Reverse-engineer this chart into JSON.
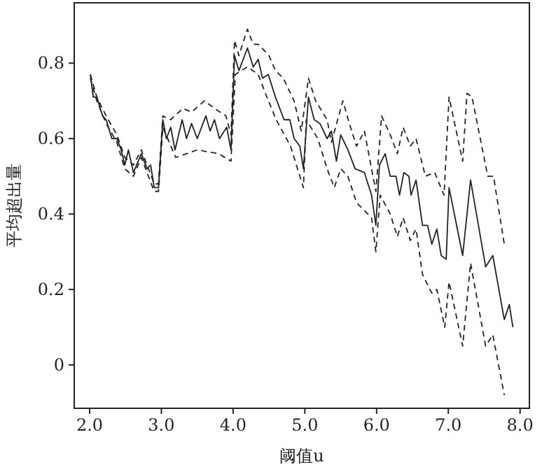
{
  "chart_data": {
    "type": "line",
    "xlabel": "阈值u",
    "ylabel": "平均超出量",
    "xlim": [
      1.785,
      8.13
    ],
    "xticks": [
      {
        "value": 2,
        "label": "2.0"
      },
      {
        "value": 3,
        "label": "3.0"
      },
      {
        "value": 4,
        "label": "4.0"
      },
      {
        "value": 5,
        "label": "5.0"
      },
      {
        "value": 6,
        "label": "6.0"
      },
      {
        "value": 7,
        "label": "7.0"
      },
      {
        "value": 8,
        "label": "8.0"
      }
    ],
    "ylim": [
      -0.115,
      0.96
    ],
    "yticks": [
      0,
      0.2,
      0.4,
      0.6,
      0.8
    ],
    "grid": false,
    "marker": "none",
    "series": [
      {
        "color": "#222222",
        "line_style": "solid",
        "x": [
          2.01,
          2.05,
          2.1,
          2.18,
          2.23,
          2.31,
          2.38,
          2.44,
          2.49,
          2.54,
          2.61,
          2.72,
          2.8,
          2.85,
          2.9,
          2.96,
          3.02,
          3.07,
          3.13,
          3.19,
          3.29,
          3.35,
          3.42,
          3.5,
          3.62,
          3.68,
          3.74,
          3.81,
          3.91,
          3.97,
          4.02,
          4.08,
          4.2,
          4.28,
          4.35,
          4.41,
          4.49,
          4.59,
          4.71,
          4.79,
          4.85,
          4.93,
          4.98,
          5.05,
          5.13,
          5.21,
          5.31,
          5.37,
          5.44,
          5.5,
          5.6,
          5.7,
          5.83,
          5.93,
          5.99,
          6.04,
          6.12,
          6.19,
          6.27,
          6.32,
          6.38,
          6.45,
          6.48,
          6.55,
          6.64,
          6.71,
          6.77,
          6.84,
          6.9,
          6.97,
          7.01,
          7.2,
          7.31,
          7.52,
          7.62,
          7.78,
          7.85,
          7.9
        ],
        "values": [
          0.77,
          0.71,
          0.71,
          0.66,
          0.65,
          0.6,
          0.6,
          0.57,
          0.53,
          0.57,
          0.51,
          0.56,
          0.52,
          0.53,
          0.47,
          0.47,
          0.65,
          0.6,
          0.63,
          0.57,
          0.65,
          0.6,
          0.64,
          0.6,
          0.66,
          0.62,
          0.65,
          0.6,
          0.63,
          0.57,
          0.82,
          0.78,
          0.84,
          0.79,
          0.81,
          0.76,
          0.77,
          0.71,
          0.65,
          0.65,
          0.6,
          0.58,
          0.52,
          0.71,
          0.65,
          0.64,
          0.6,
          0.62,
          0.54,
          0.61,
          0.57,
          0.52,
          0.51,
          0.45,
          0.37,
          0.53,
          0.56,
          0.5,
          0.5,
          0.45,
          0.51,
          0.5,
          0.45,
          0.49,
          0.37,
          0.37,
          0.32,
          0.36,
          0.29,
          0.28,
          0.47,
          0.29,
          0.49,
          0.26,
          0.29,
          0.12,
          0.16,
          0.1
        ]
      },
      {
        "color": "#222222",
        "line_style": "dashed",
        "x": [
          2.01,
          2.1,
          2.23,
          2.38,
          2.49,
          2.61,
          2.72,
          2.9,
          2.96,
          3.02,
          3.13,
          3.3,
          3.42,
          3.6,
          3.74,
          3.9,
          3.97,
          4.02,
          4.08,
          4.2,
          4.28,
          4.35,
          4.5,
          4.59,
          4.7,
          4.85,
          4.95,
          5.05,
          5.15,
          5.31,
          5.37,
          5.53,
          5.62,
          5.72,
          5.83,
          5.93,
          5.99,
          6.07,
          6.19,
          6.29,
          6.37,
          6.47,
          6.55,
          6.68,
          6.81,
          6.94,
          7.01,
          7.2,
          7.26,
          7.33,
          7.55,
          7.63,
          7.78
        ],
        "values": [
          0.77,
          0.71,
          0.66,
          0.61,
          0.55,
          0.53,
          0.57,
          0.48,
          0.48,
          0.66,
          0.65,
          0.68,
          0.67,
          0.7,
          0.68,
          0.66,
          0.61,
          0.86,
          0.82,
          0.89,
          0.85,
          0.85,
          0.82,
          0.78,
          0.76,
          0.7,
          0.62,
          0.76,
          0.7,
          0.65,
          0.59,
          0.7,
          0.64,
          0.58,
          0.62,
          0.52,
          0.46,
          0.66,
          0.61,
          0.56,
          0.63,
          0.58,
          0.6,
          0.5,
          0.51,
          0.45,
          0.71,
          0.54,
          0.72,
          0.71,
          0.5,
          0.5,
          0.32
        ]
      },
      {
        "color": "#222222",
        "line_style": "dashed",
        "x": [
          2.01,
          2.1,
          2.23,
          2.38,
          2.49,
          2.61,
          2.72,
          2.9,
          2.96,
          3.02,
          3.2,
          3.5,
          3.8,
          3.97,
          4.03,
          4.2,
          4.35,
          4.45,
          4.6,
          4.8,
          4.98,
          5.02,
          5.18,
          5.31,
          5.41,
          5.5,
          5.6,
          5.72,
          5.93,
          5.99,
          6.05,
          6.19,
          6.29,
          6.37,
          6.47,
          6.55,
          6.64,
          6.77,
          6.84,
          6.95,
          7.01,
          7.2,
          7.31,
          7.52,
          7.62,
          7.78
        ],
        "values": [
          0.76,
          0.7,
          0.64,
          0.59,
          0.52,
          0.5,
          0.55,
          0.46,
          0.46,
          0.63,
          0.55,
          0.57,
          0.56,
          0.54,
          0.77,
          0.79,
          0.77,
          0.72,
          0.65,
          0.58,
          0.47,
          0.65,
          0.6,
          0.52,
          0.47,
          0.52,
          0.5,
          0.43,
          0.39,
          0.3,
          0.45,
          0.4,
          0.34,
          0.39,
          0.33,
          0.36,
          0.24,
          0.19,
          0.2,
          0.1,
          0.22,
          0.05,
          0.27,
          0.05,
          0.08,
          -0.08
        ]
      }
    ]
  }
}
